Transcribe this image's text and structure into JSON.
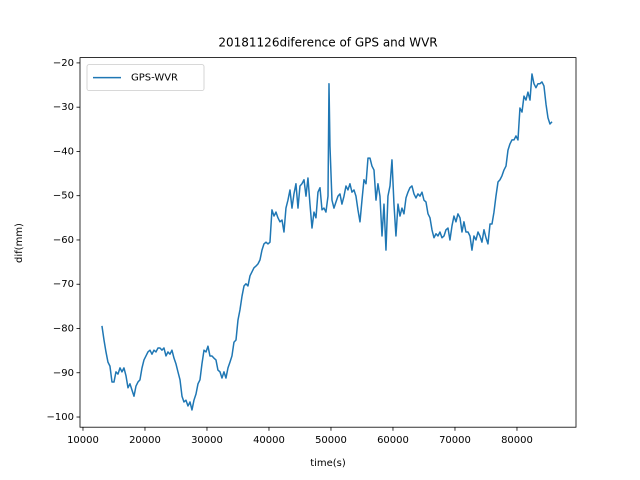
{
  "chart_data": {
    "type": "line",
    "title": "20181126diference of GPS and WVR",
    "x_label": "time(s)",
    "y_label": "dif(mm)",
    "legend": "upper left",
    "xlim": [
      9520,
      89520
    ],
    "ylim": [
      -102.3,
      -18.8
    ],
    "xticks": [
      10000,
      20000,
      30000,
      40000,
      50000,
      60000,
      70000,
      80000
    ],
    "yticks": [
      {
        "value": -100,
        "label": "−100"
      },
      {
        "value": -90,
        "label": "−90"
      },
      {
        "value": -80,
        "label": "−80"
      },
      {
        "value": -70,
        "label": "−70"
      },
      {
        "value": -60,
        "label": "−60"
      },
      {
        "value": -50,
        "label": "−50"
      },
      {
        "value": -40,
        "label": "−40"
      },
      {
        "value": -30,
        "label": "−30"
      },
      {
        "value": -20,
        "label": "−20"
      }
    ],
    "x": [
      13060,
      13390,
      13710,
      14030,
      14350,
      14680,
      15000,
      15320,
      15650,
      15970,
      16290,
      16610,
      16940,
      17260,
      17580,
      17900,
      18230,
      18550,
      18870,
      19190,
      19520,
      19840,
      20160,
      20480,
      20810,
      21130,
      21450,
      21770,
      22100,
      22420,
      22740,
      23060,
      23390,
      23710,
      24030,
      24350,
      24680,
      25000,
      25320,
      25650,
      25970,
      26290,
      26610,
      26940,
      27260,
      27580,
      27900,
      28230,
      28550,
      28870,
      29190,
      29520,
      29840,
      30160,
      30480,
      30810,
      31130,
      31450,
      31770,
      32100,
      32420,
      32740,
      33060,
      33390,
      33710,
      34030,
      34350,
      34680,
      35000,
      35320,
      35650,
      35970,
      36290,
      36610,
      36940,
      37260,
      37580,
      37900,
      38230,
      38550,
      38870,
      39190,
      39520,
      39840,
      40160,
      40480,
      40810,
      41130,
      41450,
      41770,
      42100,
      42420,
      42740,
      43060,
      43390,
      43710,
      44030,
      44350,
      44680,
      45000,
      45320,
      45650,
      45970,
      46290,
      46610,
      46940,
      47260,
      47580,
      47900,
      48230,
      48550,
      48870,
      49190,
      49520,
      49680,
      49840,
      50160,
      50480,
      50810,
      51130,
      51450,
      51770,
      52100,
      52420,
      52740,
      53060,
      53390,
      53710,
      54030,
      54350,
      54680,
      55000,
      55320,
      55650,
      55970,
      56290,
      56610,
      56940,
      57260,
      57580,
      57900,
      58230,
      58550,
      58870,
      59190,
      59520,
      59840,
      60160,
      60480,
      60810,
      61130,
      61450,
      61770,
      62100,
      62420,
      62740,
      63060,
      63390,
      63710,
      64030,
      64350,
      64680,
      65000,
      65320,
      65650,
      65970,
      66290,
      66610,
      66940,
      67260,
      67580,
      67900,
      68230,
      68550,
      68870,
      69190,
      69520,
      69840,
      70160,
      70480,
      70810,
      71130,
      71450,
      71770,
      72100,
      72420,
      72740,
      73060,
      73390,
      73710,
      74030,
      74350,
      74680,
      75000,
      75320,
      75650,
      75970,
      76290,
      76610,
      76940,
      77260,
      77580,
      77900,
      78230,
      78550,
      78870,
      79190,
      79520,
      79840,
      80160,
      80480,
      80810,
      81130,
      81450,
      81770,
      82100,
      82420,
      82740,
      83060,
      83390,
      83710,
      84030,
      84350,
      84680,
      85000,
      85320,
      85650
    ],
    "series": [
      {
        "name": "GPS-WVR",
        "color": "#1f77b4",
        "values": [
          -79.4,
          -82.6,
          -85.3,
          -87.6,
          -88.5,
          -92.1,
          -92.1,
          -89.8,
          -90.3,
          -88.9,
          -89.8,
          -88.9,
          -90.7,
          -93.4,
          -92.5,
          -93.9,
          -95.3,
          -93.0,
          -92.1,
          -91.6,
          -88.9,
          -87.1,
          -86.2,
          -85.3,
          -84.9,
          -85.8,
          -84.9,
          -85.3,
          -84.4,
          -84.4,
          -84.9,
          -84.4,
          -86.2,
          -85.3,
          -85.8,
          -84.9,
          -86.7,
          -88.0,
          -89.8,
          -91.6,
          -95.3,
          -96.6,
          -96.2,
          -97.5,
          -96.6,
          -98.4,
          -96.2,
          -94.8,
          -92.5,
          -91.6,
          -88.0,
          -84.9,
          -85.3,
          -84.0,
          -86.2,
          -86.2,
          -86.7,
          -87.1,
          -89.4,
          -89.8,
          -91.2,
          -89.8,
          -91.2,
          -88.9,
          -87.6,
          -86.2,
          -83.1,
          -82.6,
          -78.1,
          -75.8,
          -72.7,
          -70.4,
          -69.9,
          -70.4,
          -68.1,
          -67.2,
          -66.3,
          -65.9,
          -65.4,
          -64.5,
          -62.3,
          -60.9,
          -60.5,
          -60.9,
          -60.5,
          -53.2,
          -54.6,
          -53.7,
          -55.0,
          -55.9,
          -55.5,
          -58.2,
          -52.8,
          -51.0,
          -48.7,
          -52.8,
          -49.6,
          -47.3,
          -52.8,
          -47.8,
          -47.3,
          -46.4,
          -50.1,
          -46.0,
          -51.9,
          -57.3,
          -53.7,
          -55.0,
          -49.2,
          -48.2,
          -53.2,
          -52.8,
          -53.7,
          -50.1,
          -24.7,
          -38.8,
          -51.0,
          -52.8,
          -51.4,
          -50.1,
          -49.6,
          -51.9,
          -50.1,
          -47.8,
          -48.7,
          -47.3,
          -49.2,
          -48.7,
          -50.1,
          -53.2,
          -55.9,
          -51.0,
          -46.4,
          -47.3,
          -41.5,
          -41.5,
          -43.3,
          -44.2,
          -51.0,
          -47.3,
          -50.1,
          -59.1,
          -51.9,
          -62.3,
          -50.1,
          -47.8,
          -41.9,
          -51.9,
          -59.1,
          -51.9,
          -54.6,
          -52.8,
          -54.1,
          -50.5,
          -49.2,
          -48.2,
          -47.8,
          -49.6,
          -50.5,
          -49.6,
          -50.1,
          -49.2,
          -51.0,
          -51.4,
          -54.1,
          -55.0,
          -57.7,
          -59.5,
          -58.6,
          -59.1,
          -58.2,
          -59.5,
          -59.1,
          -57.7,
          -57.3,
          -60.0,
          -56.8,
          -54.6,
          -55.9,
          -54.1,
          -55.0,
          -58.2,
          -55.9,
          -58.2,
          -58.2,
          -59.1,
          -62.3,
          -59.1,
          -60.0,
          -58.2,
          -59.1,
          -60.5,
          -57.7,
          -59.5,
          -60.9,
          -56.4,
          -56.4,
          -53.7,
          -50.1,
          -46.9,
          -46.4,
          -45.5,
          -44.2,
          -43.3,
          -39.7,
          -38.3,
          -37.4,
          -37.4,
          -36.5,
          -37.4,
          -30.2,
          -31.1,
          -27.5,
          -28.4,
          -26.6,
          -28.4,
          -22.5,
          -24.7,
          -25.6,
          -24.7,
          -24.7,
          -24.3,
          -25.2,
          -29.3,
          -32.4,
          -33.8,
          -33.3
        ]
      }
    ]
  }
}
